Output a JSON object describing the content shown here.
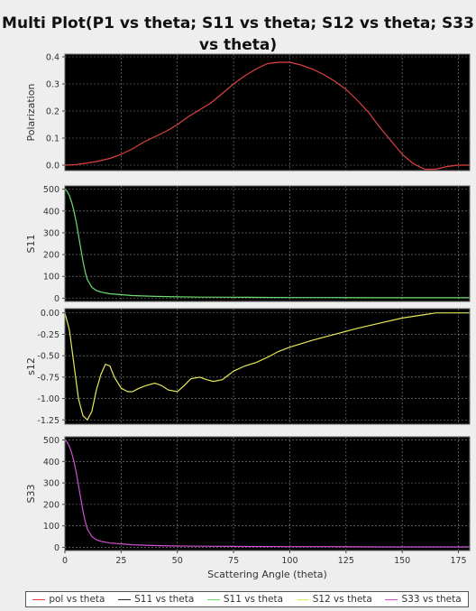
{
  "title": "Multi Plot(P1 vs theta; S11 vs theta; S12 vs theta; S33 vs theta)",
  "chart_data": {
    "type": "line",
    "xlabel": "Scattering Angle (theta)",
    "xlim": [
      0,
      180
    ],
    "xticks": [
      0,
      25,
      50,
      75,
      100,
      125,
      150,
      175
    ],
    "grid": true,
    "legend_position": "bottom",
    "background": "#000000",
    "subplots": [
      {
        "ylabel": "Polarization",
        "ylim": [
          -0.02,
          0.41
        ],
        "yticks": [
          0.0,
          0.1,
          0.2,
          0.3,
          0.4
        ],
        "tick_labels": [
          "0.0",
          "0.1",
          "0.2",
          "0.3",
          "0.4"
        ],
        "series_index": 0,
        "x": [
          0,
          5,
          10,
          15,
          20,
          25,
          30,
          35,
          40,
          45,
          50,
          55,
          60,
          65,
          70,
          75,
          80,
          85,
          90,
          95,
          100,
          105,
          110,
          115,
          120,
          125,
          130,
          135,
          140,
          145,
          150,
          155,
          160,
          165,
          170,
          175,
          180
        ],
        "y": [
          0.0,
          0.002,
          0.008,
          0.015,
          0.025,
          0.04,
          0.06,
          0.085,
          0.105,
          0.125,
          0.15,
          0.18,
          0.205,
          0.23,
          0.265,
          0.3,
          0.33,
          0.355,
          0.375,
          0.38,
          0.38,
          0.37,
          0.355,
          0.335,
          0.31,
          0.28,
          0.24,
          0.195,
          0.14,
          0.09,
          0.04,
          0.005,
          -0.015,
          -0.015,
          -0.005,
          0.0,
          0.0
        ]
      },
      {
        "ylabel": "S11",
        "ylim": [
          -15,
          515
        ],
        "yticks": [
          0,
          100,
          200,
          300,
          400,
          500
        ],
        "tick_labels": [
          "0",
          "100",
          "200",
          "300",
          "400",
          "500"
        ],
        "series_index": 2,
        "x": [
          0,
          1,
          2,
          3,
          4,
          5,
          6,
          7,
          8,
          9,
          10,
          12,
          14,
          16,
          18,
          20,
          25,
          30,
          40,
          50,
          60,
          80,
          100,
          120,
          140,
          160,
          180
        ],
        "y": [
          500,
          490,
          470,
          440,
          400,
          350,
          290,
          230,
          170,
          120,
          85,
          50,
          35,
          28,
          24,
          20,
          16,
          12,
          8,
          6,
          5,
          4,
          3,
          3,
          2,
          2,
          2
        ]
      },
      {
        "ylabel": "s12",
        "ylim": [
          -1.3,
          0.05
        ],
        "yticks": [
          0.0,
          -0.25,
          -0.5,
          -0.75,
          -1.0,
          -1.25
        ],
        "tick_labels": [
          "0.00",
          "-0.25",
          "-0.50",
          "-0.75",
          "-1.00",
          "-1.25"
        ],
        "series_index": 3,
        "x": [
          0,
          2,
          4,
          6,
          8,
          10,
          12,
          14,
          16,
          18,
          20,
          22,
          25,
          28,
          30,
          33,
          36,
          40,
          43,
          46,
          50,
          53,
          56,
          60,
          63,
          66,
          70,
          75,
          80,
          85,
          90,
          95,
          100,
          110,
          120,
          130,
          140,
          150,
          160,
          165,
          170,
          175,
          180
        ],
        "y": [
          0.0,
          -0.2,
          -0.6,
          -1.0,
          -1.2,
          -1.25,
          -1.15,
          -0.9,
          -0.72,
          -0.6,
          -0.62,
          -0.75,
          -0.88,
          -0.92,
          -0.92,
          -0.88,
          -0.85,
          -0.82,
          -0.85,
          -0.9,
          -0.92,
          -0.85,
          -0.77,
          -0.75,
          -0.78,
          -0.8,
          -0.78,
          -0.68,
          -0.62,
          -0.58,
          -0.52,
          -0.45,
          -0.4,
          -0.32,
          -0.25,
          -0.18,
          -0.12,
          -0.06,
          -0.02,
          0.0,
          0.0,
          0.0,
          0.0
        ]
      },
      {
        "ylabel": "S33",
        "ylim": [
          -15,
          515
        ],
        "yticks": [
          0,
          100,
          200,
          300,
          400,
          500
        ],
        "tick_labels": [
          "0",
          "100",
          "200",
          "300",
          "400",
          "500"
        ],
        "series_index": 4,
        "x": [
          0,
          1,
          2,
          3,
          4,
          5,
          6,
          7,
          8,
          9,
          10,
          12,
          14,
          16,
          18,
          20,
          25,
          30,
          40,
          50,
          60,
          80,
          100,
          120,
          140,
          160,
          180
        ],
        "y": [
          500,
          490,
          470,
          440,
          400,
          350,
          290,
          230,
          170,
          120,
          85,
          50,
          35,
          28,
          24,
          20,
          16,
          12,
          8,
          6,
          5,
          4,
          3,
          3,
          2,
          2,
          2
        ]
      }
    ],
    "series": [
      {
        "name": "pol vs theta",
        "color": "#e04040"
      },
      {
        "name": "S11 vs theta",
        "color": "#2a2a2a"
      },
      {
        "name": "S11 vs theta",
        "color": "#6fdc6f"
      },
      {
        "name": "S12 vs theta",
        "color": "#e8e85a"
      },
      {
        "name": "S33 vs theta",
        "color": "#d050d0"
      }
    ]
  }
}
